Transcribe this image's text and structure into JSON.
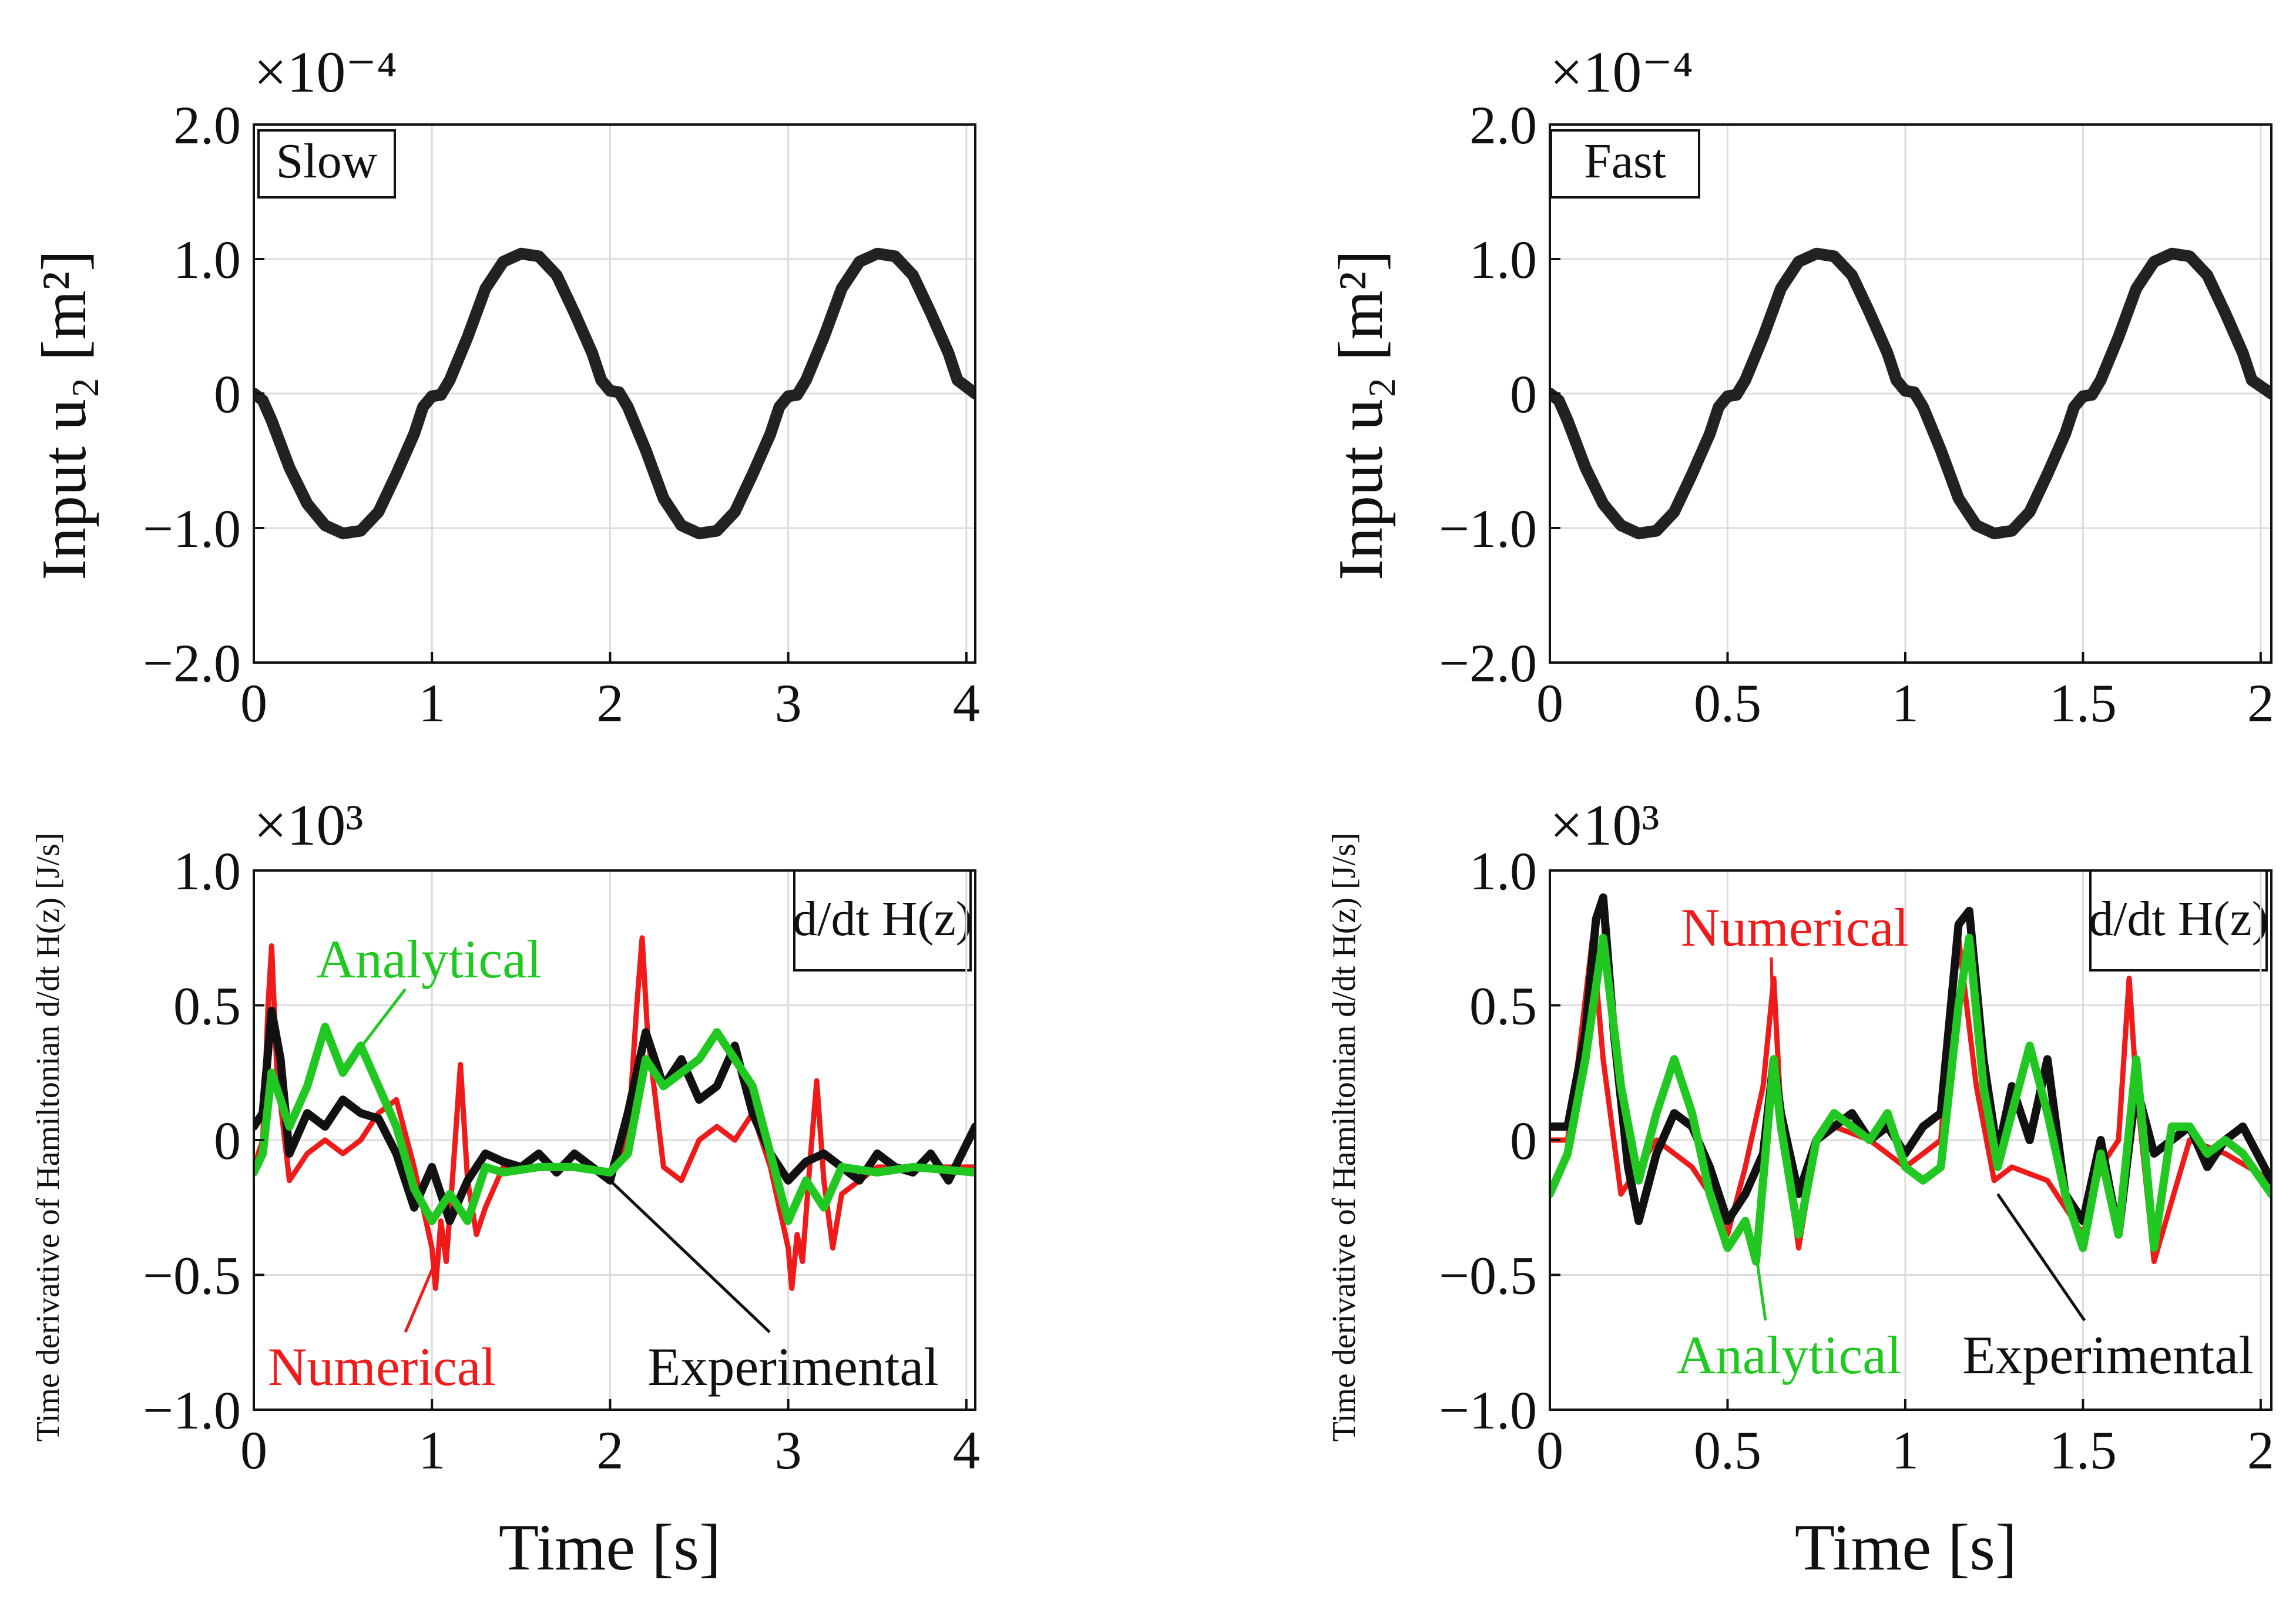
{
  "figure": {
    "xlabel": "Time [s]",
    "colors": {
      "numerical": "#ef1b1b",
      "analytical": "#22c822",
      "experimental": "#111111",
      "input": "#222222"
    }
  },
  "chart_data": [
    {
      "id": "slow_input",
      "type": "line",
      "panel_label": "Slow",
      "ylabel": "Input  u₂  [m²]",
      "exponent": "×10⁻⁴",
      "xlim": [
        0,
        4.05
      ],
      "ylim": [
        -2.0,
        2.0
      ],
      "x_ticks": [
        0,
        1,
        2,
        3,
        4
      ],
      "x_tick_labels": [
        "0",
        "1",
        "2",
        "3",
        "4"
      ],
      "y_ticks": [
        -2.0,
        -1.0,
        0,
        1.0,
        2.0
      ],
      "y_tick_labels": [
        "−2.0",
        "−1.0",
        "0",
        "1.0",
        "2.0"
      ],
      "series": [
        {
          "name": "Input",
          "x": [
            0,
            0.05,
            0.1,
            0.2,
            0.3,
            0.4,
            0.5,
            0.6,
            0.7,
            0.8,
            0.9,
            0.95,
            1.0,
            1.05,
            1.1,
            1.2,
            1.3,
            1.4,
            1.5,
            1.6,
            1.7,
            1.8,
            1.9,
            1.95,
            2.0,
            2.05,
            2.1,
            2.2,
            2.3,
            2.4,
            2.5,
            2.6,
            2.7,
            2.8,
            2.9,
            2.95,
            3.0,
            3.05,
            3.1,
            3.2,
            3.3,
            3.4,
            3.5,
            3.6,
            3.7,
            3.8,
            3.9,
            3.95,
            4.05
          ],
          "y": [
            0,
            -0.05,
            -0.2,
            -0.55,
            -0.82,
            -0.98,
            -1.04,
            -1.02,
            -0.88,
            -0.6,
            -0.3,
            -0.1,
            -0.02,
            -0.01,
            0.1,
            0.42,
            0.78,
            0.98,
            1.04,
            1.02,
            0.88,
            0.6,
            0.3,
            0.1,
            0.02,
            0.01,
            -0.1,
            -0.42,
            -0.78,
            -0.98,
            -1.04,
            -1.02,
            -0.88,
            -0.6,
            -0.3,
            -0.1,
            -0.02,
            -0.01,
            0.1,
            0.42,
            0.78,
            0.98,
            1.04,
            1.02,
            0.88,
            0.6,
            0.3,
            0.1,
            0
          ]
        }
      ]
    },
    {
      "id": "fast_input",
      "type": "line",
      "panel_label": "Fast",
      "ylabel": "Input  u₂  [m²]",
      "exponent": "×10⁻⁴",
      "xlim": [
        0,
        2.03
      ],
      "ylim": [
        -2.0,
        2.0
      ],
      "x_ticks": [
        0,
        0.5,
        1,
        1.5,
        2
      ],
      "x_tick_labels": [
        "0",
        "0.5",
        "1",
        "1.5",
        "2"
      ],
      "y_ticks": [
        -2.0,
        -1.0,
        0,
        1.0,
        2.0
      ],
      "y_tick_labels": [
        "−2.0",
        "−1.0",
        "0",
        "1.0",
        "2.0"
      ],
      "series": [
        {
          "name": "Input",
          "x": [
            0,
            0.025,
            0.05,
            0.1,
            0.15,
            0.2,
            0.25,
            0.3,
            0.35,
            0.4,
            0.45,
            0.475,
            0.5,
            0.525,
            0.55,
            0.6,
            0.65,
            0.7,
            0.75,
            0.8,
            0.85,
            0.9,
            0.95,
            0.975,
            1.0,
            1.025,
            1.05,
            1.1,
            1.15,
            1.2,
            1.25,
            1.3,
            1.35,
            1.4,
            1.45,
            1.475,
            1.5,
            1.525,
            1.55,
            1.6,
            1.65,
            1.7,
            1.75,
            1.8,
            1.85,
            1.9,
            1.95,
            1.975,
            2.03
          ],
          "y": [
            0,
            -0.05,
            -0.2,
            -0.55,
            -0.82,
            -0.98,
            -1.04,
            -1.02,
            -0.88,
            -0.6,
            -0.3,
            -0.1,
            -0.02,
            -0.01,
            0.1,
            0.42,
            0.78,
            0.98,
            1.04,
            1.02,
            0.88,
            0.6,
            0.3,
            0.1,
            0.02,
            0.01,
            -0.1,
            -0.42,
            -0.78,
            -0.98,
            -1.04,
            -1.02,
            -0.88,
            -0.6,
            -0.3,
            -0.1,
            -0.02,
            -0.01,
            0.1,
            0.42,
            0.78,
            0.98,
            1.04,
            1.02,
            0.88,
            0.6,
            0.3,
            0.1,
            0
          ]
        }
      ]
    },
    {
      "id": "slow_hdot",
      "type": "line",
      "legend_box": "d/dt H(z)",
      "ylabel": "Time derivative of Hamiltonian d/dt H(z) [J/s]",
      "exponent": "×10³",
      "xlim": [
        0,
        4.05
      ],
      "ylim": [
        -1.0,
        1.0
      ],
      "x_ticks": [
        0,
        1,
        2,
        3,
        4
      ],
      "x_tick_labels": [
        "0",
        "1",
        "2",
        "3",
        "4"
      ],
      "y_ticks": [
        -1.0,
        -0.5,
        0,
        0.5,
        1.0
      ],
      "y_tick_labels": [
        "−1.0",
        "−0.5",
        "0",
        "0.5",
        "1.0"
      ],
      "annotations": [
        {
          "series": "Analytical",
          "text": "Analytical"
        },
        {
          "series": "Numerical",
          "text": "Numerical"
        },
        {
          "series": "Experimental",
          "text": "Experimental"
        }
      ],
      "series": [
        {
          "name": "Experimental",
          "x": [
            0,
            0.05,
            0.1,
            0.15,
            0.2,
            0.3,
            0.4,
            0.5,
            0.6,
            0.7,
            0.8,
            0.9,
            1.0,
            1.1,
            1.2,
            1.3,
            1.4,
            1.5,
            1.6,
            1.7,
            1.8,
            1.9,
            2.0,
            2.1,
            2.2,
            2.3,
            2.4,
            2.5,
            2.6,
            2.7,
            2.8,
            2.9,
            3.0,
            3.1,
            3.2,
            3.3,
            3.4,
            3.5,
            3.6,
            3.7,
            3.8,
            3.9,
            4.05
          ],
          "y": [
            0.05,
            0.1,
            0.48,
            0.3,
            -0.05,
            0.1,
            0.05,
            0.15,
            0.1,
            0.08,
            -0.05,
            -0.25,
            -0.1,
            -0.3,
            -0.15,
            -0.05,
            -0.08,
            -0.1,
            -0.05,
            -0.12,
            -0.05,
            -0.1,
            -0.15,
            0.1,
            0.4,
            0.2,
            0.3,
            0.15,
            0.2,
            0.35,
            0.1,
            -0.05,
            -0.15,
            -0.08,
            -0.05,
            -0.1,
            -0.15,
            -0.05,
            -0.1,
            -0.12,
            -0.05,
            -0.15,
            0.05
          ]
        },
        {
          "name": "Analytical",
          "x": [
            0,
            0.05,
            0.1,
            0.15,
            0.2,
            0.3,
            0.4,
            0.5,
            0.6,
            0.7,
            0.8,
            0.9,
            1.0,
            1.1,
            1.2,
            1.3,
            1.4,
            1.6,
            1.8,
            2.0,
            2.1,
            2.2,
            2.3,
            2.4,
            2.5,
            2.6,
            2.7,
            2.8,
            2.9,
            3.0,
            3.1,
            3.2,
            3.3,
            3.5,
            3.7,
            4.05
          ],
          "y": [
            -0.12,
            -0.05,
            0.25,
            0.15,
            0.05,
            0.2,
            0.42,
            0.25,
            0.35,
            0.2,
            0.05,
            -0.18,
            -0.3,
            -0.2,
            -0.3,
            -0.1,
            -0.12,
            -0.1,
            -0.1,
            -0.12,
            -0.05,
            0.3,
            0.2,
            0.25,
            0.3,
            0.4,
            0.3,
            0.2,
            -0.05,
            -0.3,
            -0.15,
            -0.25,
            -0.1,
            -0.12,
            -0.1,
            -0.12
          ]
        },
        {
          "name": "Numerical",
          "x": [
            0,
            0.05,
            0.08,
            0.1,
            0.13,
            0.2,
            0.3,
            0.4,
            0.5,
            0.6,
            0.7,
            0.8,
            0.9,
            1.0,
            1.02,
            1.05,
            1.08,
            1.12,
            1.16,
            1.2,
            1.25,
            1.3,
            1.4,
            1.6,
            1.8,
            2.0,
            2.1,
            2.15,
            2.18,
            2.21,
            2.3,
            2.4,
            2.5,
            2.6,
            2.7,
            2.8,
            2.9,
            3.0,
            3.02,
            3.05,
            3.08,
            3.12,
            3.16,
            3.2,
            3.25,
            3.3,
            3.5,
            3.7,
            4.05
          ],
          "y": [
            -0.1,
            0.0,
            0.5,
            0.72,
            0.25,
            -0.15,
            -0.05,
            0.0,
            -0.05,
            0.0,
            0.1,
            0.15,
            -0.1,
            -0.4,
            -0.55,
            -0.3,
            -0.45,
            -0.1,
            0.28,
            -0.15,
            -0.35,
            -0.25,
            -0.1,
            -0.1,
            -0.1,
            -0.12,
            0.0,
            0.5,
            0.75,
            0.4,
            -0.1,
            -0.15,
            0.0,
            0.05,
            0.0,
            0.1,
            -0.1,
            -0.4,
            -0.55,
            -0.35,
            -0.45,
            -0.1,
            0.22,
            -0.15,
            -0.4,
            -0.2,
            -0.1,
            -0.1,
            -0.1
          ]
        }
      ]
    },
    {
      "id": "fast_hdot",
      "type": "line",
      "legend_box": "d/dt H(z)",
      "ylabel": "Time derivative of Hamiltonian d/dt H(z) [J/s]",
      "exponent": "×10³",
      "xlim": [
        0,
        2.03
      ],
      "ylim": [
        -1.0,
        1.0
      ],
      "x_ticks": [
        0,
        0.5,
        1,
        1.5,
        2
      ],
      "x_tick_labels": [
        "0",
        "0.5",
        "1",
        "1.5",
        "2"
      ],
      "y_ticks": [
        -1.0,
        -0.5,
        0,
        0.5,
        1.0
      ],
      "y_tick_labels": [
        "−1.0",
        "−0.5",
        "0",
        "0.5",
        "1.0"
      ],
      "annotations": [
        {
          "series": "Numerical",
          "text": "Numerical"
        },
        {
          "series": "Analytical",
          "text": "Analytical"
        },
        {
          "series": "Experimental",
          "text": "Experimental"
        }
      ],
      "series": [
        {
          "name": "Experimental",
          "x": [
            0,
            0.05,
            0.1,
            0.13,
            0.15,
            0.18,
            0.22,
            0.25,
            0.3,
            0.35,
            0.4,
            0.45,
            0.5,
            0.55,
            0.6,
            0.63,
            0.65,
            0.7,
            0.75,
            0.8,
            0.85,
            0.9,
            0.95,
            1.0,
            1.05,
            1.1,
            1.15,
            1.18,
            1.22,
            1.26,
            1.3,
            1.35,
            1.4,
            1.45,
            1.5,
            1.55,
            1.6,
            1.65,
            1.7,
            1.75,
            1.8,
            1.85,
            1.9,
            1.95,
            2.03
          ],
          "y": [
            0.05,
            0.05,
            0.4,
            0.82,
            0.9,
            0.4,
            -0.1,
            -0.3,
            -0.05,
            0.1,
            0.05,
            -0.1,
            -0.3,
            -0.2,
            -0.05,
            0.3,
            0.1,
            -0.2,
            0.0,
            0.05,
            0.1,
            0.0,
            0.05,
            -0.05,
            0.05,
            0.1,
            0.8,
            0.85,
            0.3,
            -0.05,
            0.2,
            0.0,
            0.3,
            -0.2,
            -0.3,
            0.0,
            -0.35,
            0.2,
            -0.05,
            0.0,
            0.05,
            -0.1,
            0.0,
            0.05,
            -0.15
          ]
        },
        {
          "name": "Analytical",
          "x": [
            0,
            0.05,
            0.1,
            0.15,
            0.2,
            0.25,
            0.3,
            0.35,
            0.4,
            0.45,
            0.5,
            0.55,
            0.58,
            0.63,
            0.65,
            0.7,
            0.75,
            0.8,
            0.85,
            0.9,
            0.95,
            1.0,
            1.05,
            1.1,
            1.15,
            1.18,
            1.22,
            1.26,
            1.3,
            1.35,
            1.4,
            1.45,
            1.5,
            1.55,
            1.6,
            1.65,
            1.7,
            1.75,
            1.8,
            1.85,
            1.9,
            1.95,
            2.03
          ],
          "y": [
            -0.2,
            -0.05,
            0.3,
            0.75,
            0.2,
            -0.15,
            0.1,
            0.3,
            0.1,
            -0.2,
            -0.4,
            -0.3,
            -0.45,
            0.3,
            0.05,
            -0.35,
            0.0,
            0.1,
            0.05,
            0.0,
            0.1,
            -0.1,
            -0.15,
            -0.1,
            0.5,
            0.75,
            0.2,
            -0.1,
            0.1,
            0.35,
            0.1,
            -0.2,
            -0.4,
            -0.05,
            -0.35,
            0.3,
            -0.4,
            0.05,
            0.05,
            -0.05,
            0.0,
            -0.05,
            -0.2
          ]
        },
        {
          "name": "Numerical",
          "x": [
            0,
            0.05,
            0.08,
            0.12,
            0.15,
            0.2,
            0.25,
            0.3,
            0.4,
            0.45,
            0.5,
            0.55,
            0.6,
            0.63,
            0.65,
            0.7,
            0.75,
            0.8,
            0.9,
            1.0,
            1.05,
            1.1,
            1.13,
            1.15,
            1.2,
            1.25,
            1.3,
            1.4,
            1.5,
            1.55,
            1.6,
            1.63,
            1.65,
            1.7,
            1.8,
            1.9,
            2.03
          ],
          "y": [
            0.0,
            0.0,
            0.3,
            0.75,
            0.3,
            -0.2,
            -0.1,
            0.0,
            -0.1,
            -0.2,
            -0.35,
            -0.1,
            0.2,
            0.6,
            0.1,
            -0.4,
            0.0,
            0.05,
            0.0,
            -0.1,
            -0.05,
            0.0,
            0.5,
            0.75,
            0.2,
            -0.15,
            -0.1,
            -0.15,
            -0.35,
            -0.1,
            0.0,
            0.6,
            0.2,
            -0.45,
            0.0,
            -0.05,
            -0.15
          ]
        }
      ]
    }
  ]
}
